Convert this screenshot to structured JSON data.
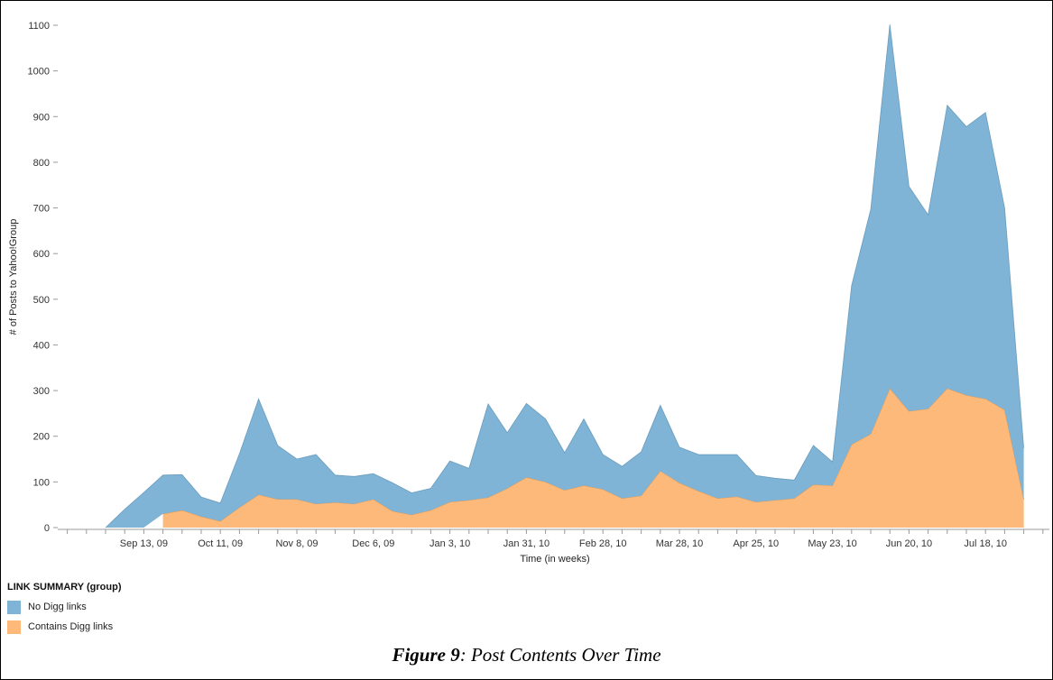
{
  "chart_data": {
    "type": "area",
    "stacked": true,
    "xlabel": "Time (in weeks)",
    "ylabel": "# of Posts to Yahoo!Group",
    "ylim": [
      0,
      1100
    ],
    "yticks": [
      0,
      100,
      200,
      300,
      400,
      500,
      600,
      700,
      800,
      900,
      1000,
      1100
    ],
    "x_tick_labels": [
      "Sep 13, 09",
      "Oct 11, 09",
      "Nov 8, 09",
      "Dec 6, 09",
      "Jan 3, 10",
      "Jan 31, 10",
      "Feb 28, 10",
      "Mar 28, 10",
      "Apr 25, 10",
      "May 23, 10",
      "Jun 20, 10",
      "Jul 18, 10"
    ],
    "x": [
      "Aug 30, 09",
      "Sep 6, 09",
      "Sep 13, 09",
      "Sep 20, 09",
      "Sep 27, 09",
      "Oct 4, 09",
      "Oct 11, 09",
      "Oct 18, 09",
      "Oct 25, 09",
      "Nov 1, 09",
      "Nov 8, 09",
      "Nov 15, 09",
      "Nov 22, 09",
      "Nov 29, 09",
      "Dec 6, 09",
      "Dec 13, 09",
      "Dec 20, 09",
      "Dec 27, 09",
      "Jan 3, 10",
      "Jan 10, 10",
      "Jan 17, 10",
      "Jan 24, 10",
      "Jan 31, 10",
      "Feb 7, 10",
      "Feb 14, 10",
      "Feb 21, 10",
      "Feb 28, 10",
      "Mar 7, 10",
      "Mar 14, 10",
      "Mar 21, 10",
      "Mar 28, 10",
      "Apr 4, 10",
      "Apr 11, 10",
      "Apr 18, 10",
      "Apr 25, 10",
      "May 2, 10",
      "May 9, 10",
      "May 16, 10",
      "May 23, 10",
      "May 30, 10",
      "Jun 6, 10",
      "Jun 13, 10",
      "Jun 20, 10",
      "Jun 27, 10",
      "Jul 4, 10",
      "Jul 11, 10",
      "Jul 18, 10",
      "Jul 25, 10",
      "Aug 1, 10",
      "Aug 8, 10"
    ],
    "series": [
      {
        "name": "Contains Digg links",
        "color": "#fdb97a",
        "values": [
          null,
          null,
          null,
          30,
          38,
          24,
          14,
          44,
          72,
          62,
          62,
          52,
          55,
          52,
          62,
          36,
          28,
          38,
          56,
          60,
          66,
          86,
          110,
          100,
          82,
          92,
          84,
          64,
          70,
          124,
          98,
          80,
          64,
          68,
          56,
          60,
          64,
          94,
          92,
          182,
          205,
          305,
          255,
          260,
          305,
          290,
          282,
          258,
          62,
          null
        ]
      },
      {
        "name": "No Digg links",
        "color": "#7fb4d6",
        "values": [
          0,
          40,
          77,
          85,
          78,
          43,
          40,
          118,
          210,
          118,
          88,
          108,
          60,
          60,
          56,
          62,
          48,
          48,
          90,
          70,
          205,
          122,
          162,
          138,
          82,
          146,
          76,
          70,
          96,
          144,
          78,
          80,
          96,
          92,
          58,
          48,
          40,
          86,
          52,
          348,
          492,
          797,
          492,
          425,
          620,
          588,
          627,
          442,
          112,
          null
        ]
      }
    ],
    "legend": {
      "title": "LINK SUMMARY (group)",
      "position": "bottom-left",
      "items": [
        {
          "label": "No Digg links",
          "color": "#7fb4d6"
        },
        {
          "label": "Contains Digg links",
          "color": "#fdb97a"
        }
      ]
    },
    "grid": false
  },
  "caption": {
    "figure_label": "Figure 9",
    "text": ": Post Contents Over Time"
  }
}
